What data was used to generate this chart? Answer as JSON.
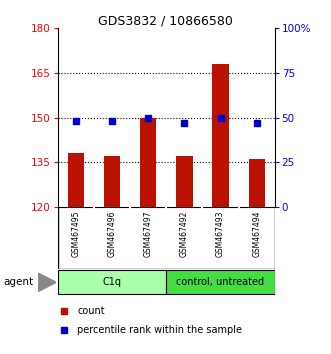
{
  "title": "GDS3832 / 10866580",
  "samples": [
    "GSM467495",
    "GSM467496",
    "GSM467497",
    "GSM467492",
    "GSM467493",
    "GSM467494"
  ],
  "red_values": [
    138,
    137,
    150,
    137,
    168,
    136
  ],
  "blue_percentiles": [
    48,
    48,
    50,
    47,
    50,
    47
  ],
  "ylim_left": [
    120,
    180
  ],
  "ylim_right": [
    0,
    100
  ],
  "yticks_left": [
    120,
    135,
    150,
    165,
    180
  ],
  "yticks_right": [
    0,
    25,
    50,
    75,
    100
  ],
  "ytick_labels_right": [
    "0",
    "25",
    "50",
    "75",
    "100%"
  ],
  "bar_color": "#bb1100",
  "marker_color": "#0000cc",
  "bar_bottom": 120,
  "sample_box_color": "#cccccc",
  "group_c1q_color": "#aaffaa",
  "group_ctrl_color": "#44dd44",
  "agent_label": "agent",
  "legend_count_color": "#bb1100",
  "legend_pct_color": "#0000cc",
  "legend_count_label": "count",
  "legend_pct_label": "percentile rank within the sample"
}
